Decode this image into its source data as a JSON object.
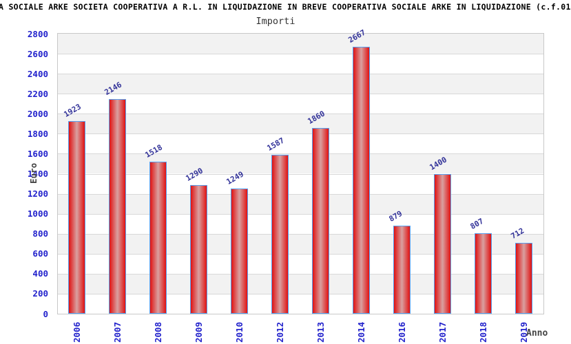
{
  "header": {
    "title": "A SOCIALE ARKE SOCIETA COOPERATIVA A R.L. IN LIQUIDAZIONE IN BREVE COOPERATIVA SOCIALE ARKE IN LIQUIDAZIONE (c.f.01",
    "subtitle": "Importi"
  },
  "chart_data": {
    "type": "bar",
    "title": "Importi",
    "xlabel": "Anno",
    "ylabel": "Euro",
    "categories": [
      "2006",
      "2007",
      "2008",
      "2009",
      "2010",
      "2012",
      "2013",
      "2014",
      "2016",
      "2017",
      "2018",
      "2019"
    ],
    "values": [
      1923,
      2146,
      1518,
      1290,
      1249,
      1587,
      1860,
      2667,
      879,
      1400,
      807,
      712
    ],
    "ylim": [
      0,
      2800
    ],
    "ytick_step": 200,
    "grid": true,
    "bands": "alternating-horizontal",
    "legend_position": "none",
    "value_labels_shown": true
  },
  "colors": {
    "bar_edge": "#e01212",
    "bar_center": "#d9a0a0",
    "bar_border": "#55a0f0",
    "tick_label": "#2222cc",
    "value_label": "#333399",
    "band": "#f2f2f2",
    "gridline": "#d8d8d8",
    "plot_border": "#c8c8c8",
    "axis_title": "#444444",
    "title": "#000000"
  }
}
